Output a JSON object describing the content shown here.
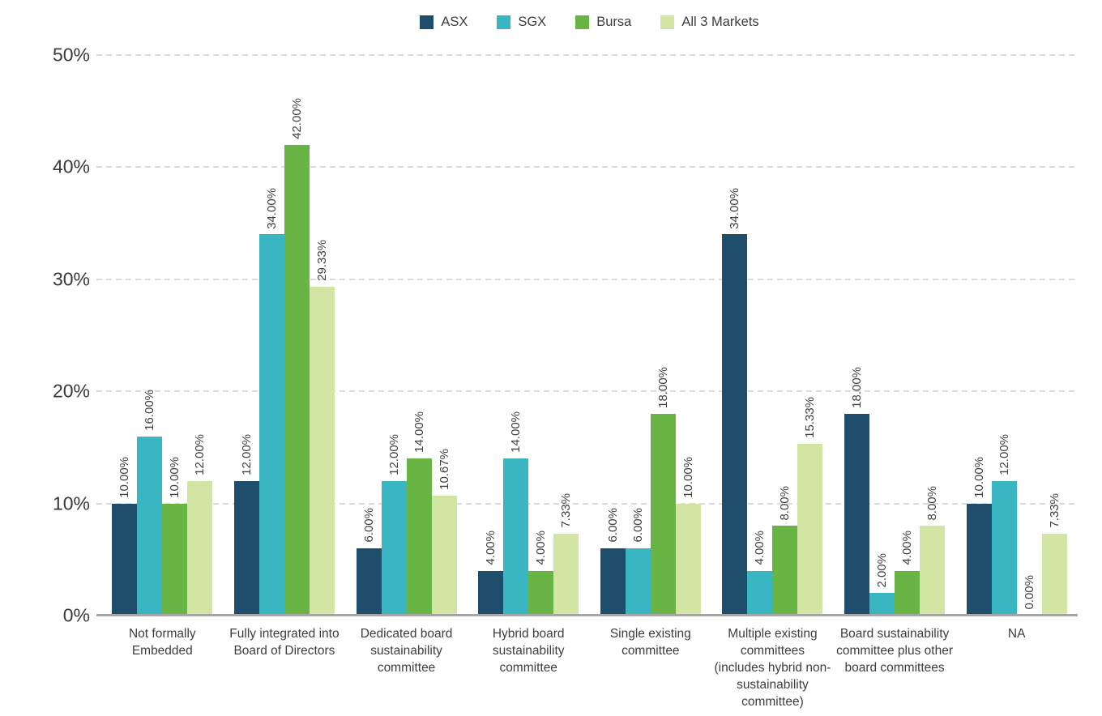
{
  "chart_data": {
    "type": "bar",
    "title": "",
    "categories": [
      "Not formally Embedded",
      "Fully integrated into Board of Directors",
      "Dedicated board sustainability committee",
      "Hybrid board sustainability committee",
      "Single existing committee",
      "Multiple existing committees (includes hybrid non-sustainability committee)",
      "Board sustainability committee plus other board committees",
      "NA"
    ],
    "series": [
      {
        "name": "ASX",
        "color": "#1e4e6c",
        "values": [
          10,
          12,
          6,
          4,
          6,
          34,
          18,
          10
        ],
        "labels": [
          "10.00%",
          "12.00%",
          "6.00%",
          "4.00%",
          "6.00%",
          "34.00%",
          "18.00%",
          "10.00%"
        ]
      },
      {
        "name": "SGX",
        "color": "#3ab6c3",
        "values": [
          16,
          34,
          12,
          14,
          6,
          4,
          2,
          12
        ],
        "labels": [
          "16.00%",
          "34.00%",
          "12.00%",
          "14.00%",
          "6.00%",
          "4.00%",
          "2.00%",
          "12.00%"
        ]
      },
      {
        "name": "Bursa",
        "color": "#68b546",
        "values": [
          10,
          42,
          14,
          4,
          18,
          8,
          4,
          0
        ],
        "labels": [
          "10.00%",
          "42.00%",
          "14.00%",
          "4.00%",
          "18.00%",
          "8.00%",
          "4.00%",
          "0.00%"
        ]
      },
      {
        "name": "All 3 Markets",
        "color": "#d3e5a3",
        "values": [
          12,
          29.33,
          10.67,
          7.33,
          10,
          15.33,
          8,
          7.33
        ],
        "labels": [
          "12.00%",
          "29.33%",
          "10.67%",
          "7.33%",
          "10.00%",
          "15.33%",
          "8.00%",
          "7.33%"
        ]
      }
    ],
    "y_axis": {
      "min": 0,
      "max": 50,
      "tick_step": 10,
      "ticks": [
        "0%",
        "10%",
        "20%",
        "30%",
        "40%",
        "50%"
      ]
    },
    "legend": {
      "position": "top"
    },
    "grid": {
      "horizontal": true,
      "style": "dashed",
      "color": "#dbdbdb"
    },
    "colors": {
      "axis_line": "#a6a6a6",
      "text": "#3d3d3c"
    }
  }
}
